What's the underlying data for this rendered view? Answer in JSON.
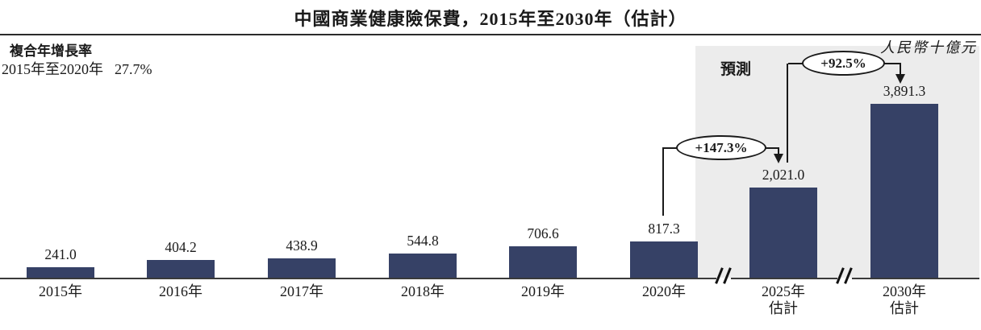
{
  "chart_data": {
    "type": "bar",
    "title": "中國商業健康險保費，2015年至2030年（估計）",
    "unit_label": "人民幣十億元",
    "forecast_label": "預測",
    "cagr": {
      "label": "複合年增長率",
      "period": "2015年至2020年",
      "value": "27.7%"
    },
    "x_labels": [
      {
        "line1": "2015年",
        "line2": ""
      },
      {
        "line1": "2016年",
        "line2": ""
      },
      {
        "line1": "2017年",
        "line2": ""
      },
      {
        "line1": "2018年",
        "line2": ""
      },
      {
        "line1": "2019年",
        "line2": ""
      },
      {
        "line1": "2020年",
        "line2": ""
      },
      {
        "line1": "2025年",
        "line2": "估計"
      },
      {
        "line1": "2030年",
        "line2": "估計"
      }
    ],
    "values": [
      241.0,
      404.2,
      438.9,
      544.8,
      706.6,
      817.3,
      2021.0,
      3891.3
    ],
    "value_labels": [
      "241.0",
      "404.2",
      "438.9",
      "544.8",
      "706.6",
      "817.3",
      "2,021.0",
      "3,891.3"
    ],
    "annotations": [
      {
        "label": "+147.3%",
        "from": "2020年",
        "to": "2025年估計"
      },
      {
        "label": "+92.5%",
        "from": "2025年估計",
        "to": "2030年估計"
      }
    ],
    "forecast_start_index": 6,
    "ylim": [
      0,
      3900
    ],
    "axis_breaks": 2,
    "legend": "none",
    "colors": {
      "bar": "#364166",
      "forecast_bg": "#ececec",
      "axis": "#3a3a3a",
      "text": "#1a1a1a"
    }
  }
}
